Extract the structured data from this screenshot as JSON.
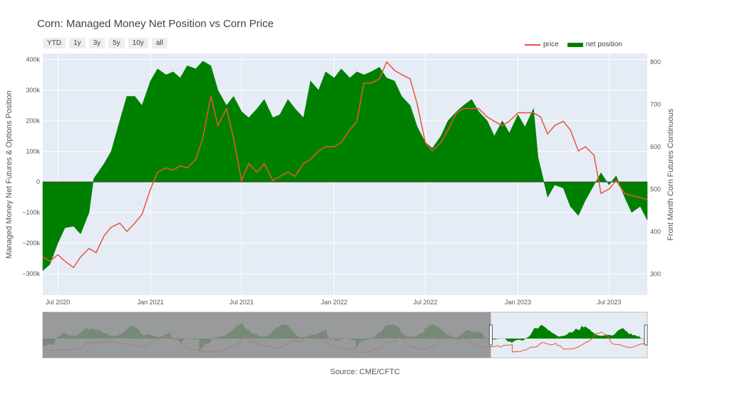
{
  "title": "Corn: Managed Money Net Position vs Corn Price",
  "range_buttons": [
    "YTD",
    "1y",
    "3y",
    "5y",
    "10y",
    "all"
  ],
  "legend": {
    "price_label": "price",
    "net_label": "net position"
  },
  "colors": {
    "price": "#e8553a",
    "net": "#008000",
    "plot_bg": "#e5ecf6",
    "range_shade": "#8c8c8c"
  },
  "source": "Source: CME/CFTC",
  "chart_data": {
    "type": "area",
    "x_range": [
      "2020-06-01",
      "2023-09-15"
    ],
    "y_left": {
      "label": "Managed Money Net Futures & Options Position",
      "range": [
        -370000,
        420000
      ],
      "ticks": [
        -300000,
        -200000,
        -100000,
        0,
        100000,
        200000,
        300000,
        400000
      ],
      "tick_labels": [
        "−300k",
        "−200k",
        "−100k",
        "0",
        "100k",
        "200k",
        "300k",
        "400k"
      ]
    },
    "y_right": {
      "label": "Front Month Corn Futures Continuous",
      "range": [
        250,
        820
      ],
      "ticks": [
        300,
        400,
        500,
        600,
        700,
        800
      ],
      "tick_labels": [
        "300",
        "400",
        "500",
        "600",
        "700",
        "800"
      ]
    },
    "x_ticks": [
      {
        "date": "2020-07-01",
        "label": "Jul 2020"
      },
      {
        "date": "2021-01-01",
        "label": "Jan 2021"
      },
      {
        "date": "2021-07-01",
        "label": "Jul 2021"
      },
      {
        "date": "2022-01-01",
        "label": "Jan 2022"
      },
      {
        "date": "2022-07-01",
        "label": "Jul 2022"
      },
      {
        "date": "2023-01-01",
        "label": "Jan 2023"
      },
      {
        "date": "2023-07-01",
        "label": "Jul 2023"
      }
    ],
    "series": [
      {
        "name": "net position",
        "axis": "left",
        "points": [
          [
            "2020-06-01",
            -290000
          ],
          [
            "2020-06-15",
            -270000
          ],
          [
            "2020-07-01",
            -200000
          ],
          [
            "2020-07-15",
            -150000
          ],
          [
            "2020-08-01",
            -145000
          ],
          [
            "2020-08-15",
            -170000
          ],
          [
            "2020-09-01",
            -100000
          ],
          [
            "2020-09-10",
            10000
          ],
          [
            "2020-10-01",
            60000
          ],
          [
            "2020-10-15",
            100000
          ],
          [
            "2020-11-01",
            200000
          ],
          [
            "2020-11-15",
            280000
          ],
          [
            "2020-12-01",
            280000
          ],
          [
            "2020-12-15",
            250000
          ],
          [
            "2021-01-01",
            330000
          ],
          [
            "2021-01-15",
            370000
          ],
          [
            "2021-02-01",
            350000
          ],
          [
            "2021-02-15",
            360000
          ],
          [
            "2021-03-01",
            340000
          ],
          [
            "2021-03-15",
            380000
          ],
          [
            "2021-04-01",
            370000
          ],
          [
            "2021-04-15",
            395000
          ],
          [
            "2021-05-01",
            380000
          ],
          [
            "2021-05-15",
            300000
          ],
          [
            "2021-06-01",
            250000
          ],
          [
            "2021-06-15",
            280000
          ],
          [
            "2021-07-01",
            230000
          ],
          [
            "2021-07-15",
            210000
          ],
          [
            "2021-08-01",
            240000
          ],
          [
            "2021-08-15",
            270000
          ],
          [
            "2021-09-01",
            210000
          ],
          [
            "2021-09-15",
            220000
          ],
          [
            "2021-10-01",
            270000
          ],
          [
            "2021-10-15",
            240000
          ],
          [
            "2021-11-01",
            210000
          ],
          [
            "2021-11-15",
            330000
          ],
          [
            "2021-12-01",
            300000
          ],
          [
            "2021-12-15",
            360000
          ],
          [
            "2022-01-01",
            340000
          ],
          [
            "2022-01-15",
            370000
          ],
          [
            "2022-02-01",
            340000
          ],
          [
            "2022-02-15",
            360000
          ],
          [
            "2022-03-01",
            350000
          ],
          [
            "2022-03-15",
            360000
          ],
          [
            "2022-04-01",
            375000
          ],
          [
            "2022-04-15",
            340000
          ],
          [
            "2022-05-01",
            330000
          ],
          [
            "2022-05-15",
            280000
          ],
          [
            "2022-06-01",
            250000
          ],
          [
            "2022-06-15",
            180000
          ],
          [
            "2022-07-01",
            130000
          ],
          [
            "2022-07-15",
            110000
          ],
          [
            "2022-08-01",
            150000
          ],
          [
            "2022-08-15",
            200000
          ],
          [
            "2022-09-01",
            230000
          ],
          [
            "2022-09-15",
            250000
          ],
          [
            "2022-10-01",
            270000
          ],
          [
            "2022-10-15",
            230000
          ],
          [
            "2022-11-01",
            200000
          ],
          [
            "2022-11-15",
            150000
          ],
          [
            "2022-12-01",
            200000
          ],
          [
            "2022-12-15",
            160000
          ],
          [
            "2023-01-01",
            220000
          ],
          [
            "2023-01-15",
            180000
          ],
          [
            "2023-02-01",
            240000
          ],
          [
            "2023-02-10",
            80000
          ],
          [
            "2023-03-01",
            -50000
          ],
          [
            "2023-03-15",
            -10000
          ],
          [
            "2023-04-01",
            -20000
          ],
          [
            "2023-04-15",
            -80000
          ],
          [
            "2023-05-01",
            -110000
          ],
          [
            "2023-05-15",
            -60000
          ],
          [
            "2023-06-01",
            -10000
          ],
          [
            "2023-06-15",
            30000
          ],
          [
            "2023-07-01",
            -10000
          ],
          [
            "2023-07-15",
            20000
          ],
          [
            "2023-08-01",
            -50000
          ],
          [
            "2023-08-15",
            -100000
          ],
          [
            "2023-09-01",
            -80000
          ],
          [
            "2023-09-15",
            -125000
          ]
        ]
      },
      {
        "name": "price",
        "axis": "right",
        "points": [
          [
            "2020-06-01",
            340
          ],
          [
            "2020-06-15",
            330
          ],
          [
            "2020-07-01",
            345
          ],
          [
            "2020-07-15",
            330
          ],
          [
            "2020-08-01",
            315
          ],
          [
            "2020-08-15",
            340
          ],
          [
            "2020-09-01",
            360
          ],
          [
            "2020-09-15",
            350
          ],
          [
            "2020-10-01",
            390
          ],
          [
            "2020-10-15",
            410
          ],
          [
            "2020-11-01",
            420
          ],
          [
            "2020-11-15",
            400
          ],
          [
            "2020-12-01",
            420
          ],
          [
            "2020-12-15",
            440
          ],
          [
            "2021-01-01",
            500
          ],
          [
            "2021-01-15",
            540
          ],
          [
            "2021-02-01",
            550
          ],
          [
            "2021-02-15",
            545
          ],
          [
            "2021-03-01",
            555
          ],
          [
            "2021-03-15",
            550
          ],
          [
            "2021-04-01",
            570
          ],
          [
            "2021-04-15",
            620
          ],
          [
            "2021-05-01",
            720
          ],
          [
            "2021-05-15",
            650
          ],
          [
            "2021-06-01",
            690
          ],
          [
            "2021-06-15",
            620
          ],
          [
            "2021-07-01",
            520
          ],
          [
            "2021-07-15",
            560
          ],
          [
            "2021-08-01",
            540
          ],
          [
            "2021-08-15",
            560
          ],
          [
            "2021-09-01",
            520
          ],
          [
            "2021-09-15",
            530
          ],
          [
            "2021-10-01",
            540
          ],
          [
            "2021-10-15",
            530
          ],
          [
            "2021-11-01",
            560
          ],
          [
            "2021-11-15",
            570
          ],
          [
            "2021-12-01",
            590
          ],
          [
            "2021-12-15",
            600
          ],
          [
            "2022-01-01",
            600
          ],
          [
            "2022-01-15",
            610
          ],
          [
            "2022-02-01",
            640
          ],
          [
            "2022-02-15",
            660
          ],
          [
            "2022-03-01",
            750
          ],
          [
            "2022-03-15",
            750
          ],
          [
            "2022-04-01",
            760
          ],
          [
            "2022-04-15",
            800
          ],
          [
            "2022-05-01",
            780
          ],
          [
            "2022-05-15",
            770
          ],
          [
            "2022-06-01",
            760
          ],
          [
            "2022-06-15",
            700
          ],
          [
            "2022-07-01",
            610
          ],
          [
            "2022-07-15",
            590
          ],
          [
            "2022-08-01",
            610
          ],
          [
            "2022-08-15",
            640
          ],
          [
            "2022-09-01",
            680
          ],
          [
            "2022-09-15",
            690
          ],
          [
            "2022-10-01",
            690
          ],
          [
            "2022-10-15",
            690
          ],
          [
            "2022-11-01",
            670
          ],
          [
            "2022-11-15",
            660
          ],
          [
            "2022-12-01",
            650
          ],
          [
            "2022-12-15",
            660
          ],
          [
            "2023-01-01",
            680
          ],
          [
            "2023-01-15",
            680
          ],
          [
            "2023-02-01",
            680
          ],
          [
            "2023-02-15",
            670
          ],
          [
            "2023-03-01",
            630
          ],
          [
            "2023-03-15",
            650
          ],
          [
            "2023-04-01",
            660
          ],
          [
            "2023-04-15",
            640
          ],
          [
            "2023-05-01",
            590
          ],
          [
            "2023-05-15",
            600
          ],
          [
            "2023-06-01",
            580
          ],
          [
            "2023-06-15",
            490
          ],
          [
            "2023-07-01",
            500
          ],
          [
            "2023-07-15",
            520
          ],
          [
            "2023-08-01",
            490
          ],
          [
            "2023-08-15",
            485
          ],
          [
            "2023-09-01",
            480
          ],
          [
            "2023-09-15",
            475
          ]
        ]
      }
    ],
    "range_slider": {
      "full_range": [
        "2011-01-01",
        "2023-09-15"
      ],
      "selected": [
        "2020-06-01",
        "2023-09-15"
      ]
    },
    "legend_position": "top-right",
    "grid": true
  }
}
